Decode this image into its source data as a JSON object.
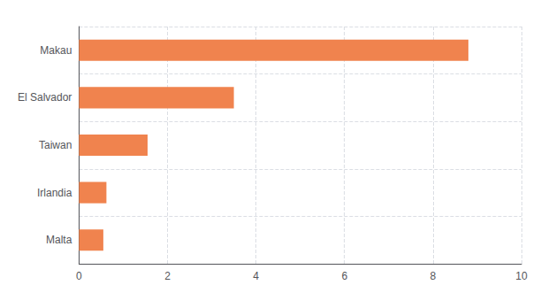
{
  "chart_data": {
    "type": "bar",
    "orientation": "horizontal",
    "categories": [
      "Malta",
      "Irlandia",
      "Taiwan",
      "El Salvador",
      "Makau"
    ],
    "values": [
      0.55,
      0.62,
      1.55,
      3.5,
      8.8
    ],
    "color": "#f0834e",
    "xlim": [
      0,
      10
    ],
    "xticks": [
      0,
      2,
      4,
      6,
      8,
      10
    ],
    "grid": true
  }
}
